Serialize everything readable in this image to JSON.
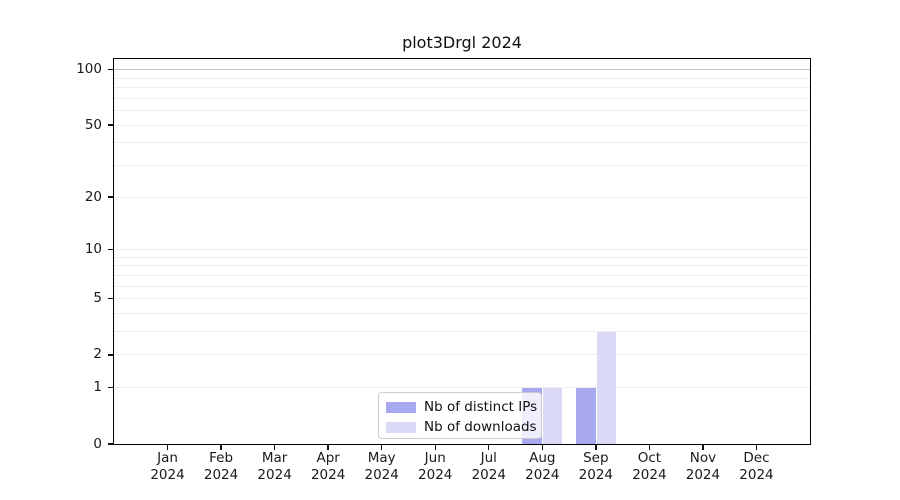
{
  "chart_data": {
    "type": "bar",
    "title": "plot3Drgl 2024",
    "categories": [
      "Jan 2024",
      "Feb 2024",
      "Mar 2024",
      "Apr 2024",
      "May 2024",
      "Jun 2024",
      "Jul 2024",
      "Aug 2024",
      "Sep 2024",
      "Oct 2024",
      "Nov 2024",
      "Dec 2024"
    ],
    "x_months": [
      "Jan",
      "Feb",
      "Mar",
      "Apr",
      "May",
      "Jun",
      "Jul",
      "Aug",
      "Sep",
      "Oct",
      "Nov",
      "Dec"
    ],
    "x_year": "2024",
    "series": [
      {
        "name": "Nb of distinct IPs",
        "color": "#a8a8ef",
        "values": [
          0,
          0,
          0,
          0,
          0,
          0,
          0,
          1,
          1,
          0,
          0,
          0
        ]
      },
      {
        "name": "Nb of downloads",
        "color": "#dadaf7",
        "values": [
          0,
          0,
          0,
          0,
          0,
          0,
          0,
          1,
          3,
          0,
          0,
          0
        ]
      }
    ],
    "xlabel": "",
    "ylabel": "",
    "y_axis": {
      "scale": "log1p",
      "ticks": [
        0,
        1,
        2,
        5,
        10,
        20,
        50,
        100
      ],
      "minor_gridlines": [
        3,
        4,
        6,
        7,
        8,
        9,
        30,
        40,
        60,
        70,
        80,
        90
      ],
      "ylim": [
        0,
        113
      ]
    },
    "legend": {
      "position": "lower center",
      "entries": [
        "Nb of distinct IPs",
        "Nb of downloads"
      ]
    },
    "grid": {
      "major": true,
      "minor": true
    }
  },
  "colors": {
    "bar_distinct_ips": "#a8a8ef",
    "bar_downloads": "#dadaf7",
    "grid_minor": "#ededed",
    "grid_top": "#c7c7c7",
    "axis_spine": "#000000",
    "tick_text": "#1a1a1a",
    "legend_border": "#cccccc",
    "background": "#ffffff"
  }
}
